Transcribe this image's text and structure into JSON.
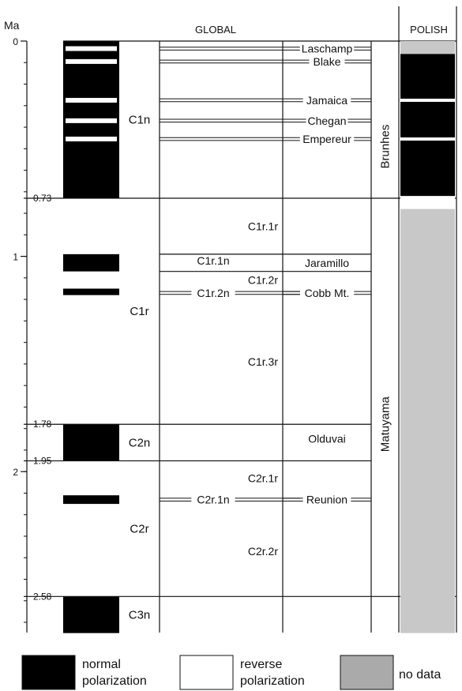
{
  "axis": {
    "unit": "Ma",
    "ticks": [
      {
        "label": "0",
        "value": 0
      },
      {
        "label": "0.73",
        "value": 0.73
      },
      {
        "label": "1",
        "value": 1
      },
      {
        "label": "1.78",
        "value": 1.78
      },
      {
        "label": "1.95",
        "value": 1.95
      },
      {
        "label": "2",
        "value": 2
      },
      {
        "label": "2.58",
        "value": 2.58
      }
    ]
  },
  "headers": {
    "global": "GLOBAL",
    "polish": "POLISH"
  },
  "chrons": [
    {
      "label": "C1n",
      "start": 0,
      "end": 0.73
    },
    {
      "label": "C1r",
      "start": 0.73,
      "end": 1.78
    },
    {
      "label": "C2n",
      "start": 1.78,
      "end": 1.95
    },
    {
      "label": "C2r",
      "start": 1.95,
      "end": 2.58
    },
    {
      "label": "C3n",
      "start": 2.58,
      "end": 2.75
    }
  ],
  "subchrons": [
    {
      "label": "C1r.1r",
      "age": 0.86
    },
    {
      "label": "C1r.1n",
      "age": 1.02
    },
    {
      "label": "C1r.2r",
      "age": 1.11
    },
    {
      "label": "C1r.2n",
      "age": 1.17
    },
    {
      "label": "C1r.3r",
      "age": 1.49
    },
    {
      "label": "C2r.1r",
      "age": 2.03
    },
    {
      "label": "C2r.1n",
      "age": 2.13
    },
    {
      "label": "C2r.2r",
      "age": 2.37
    }
  ],
  "excursions": [
    {
      "label": "Laschamp",
      "age": 0.035
    },
    {
      "label": "Blake",
      "age": 0.095
    },
    {
      "label": "Jamaica",
      "age": 0.275
    },
    {
      "label": "Chegan",
      "age": 0.37
    },
    {
      "label": "Empereur",
      "age": 0.455
    },
    {
      "label": "Cobb Mt.",
      "age": 1.17
    },
    {
      "label": "Reunion",
      "age": 2.13
    }
  ],
  "events": [
    {
      "label": "Jaramillo",
      "start": 0.99,
      "end": 1.07
    },
    {
      "label": "Olduvai",
      "start": 1.78,
      "end": 1.95
    }
  ],
  "chrons_named": [
    {
      "label": "Brunhes",
      "start": 0,
      "end": 0.73
    },
    {
      "label": "Matuyama",
      "start": 0.73,
      "end": 2.58
    }
  ],
  "global_normal_intervals": [
    [
      0,
      0.73
    ],
    [
      0.99,
      1.07
    ],
    [
      1.15,
      1.18
    ],
    [
      1.78,
      1.95
    ],
    [
      2.11,
      2.15
    ],
    [
      2.58,
      2.75
    ]
  ],
  "global_white_lines": [
    0.035,
    0.095,
    0.275,
    0.37,
    0.455
  ],
  "polish_column": [
    {
      "state": "no data",
      "start": 0,
      "end": 0.06
    },
    {
      "state": "normal",
      "start": 0.06,
      "end": 0.72
    },
    {
      "state": "reverse",
      "start": 0.72,
      "end": 0.78
    },
    {
      "state": "no data",
      "start": 0.78,
      "end": 2.75
    }
  ],
  "polish_white_lines": [
    0.275,
    0.455
  ],
  "legend": [
    {
      "label": "normal polarization",
      "line1": "normal",
      "line2": "polarization",
      "color": "#000000"
    },
    {
      "label": "reverse polarization",
      "line1": "reverse",
      "line2": "polarization",
      "color": "#ffffff"
    },
    {
      "label": "no data",
      "line1": "no data",
      "line2": "",
      "color": "#aaaaaa"
    }
  ],
  "colors": {
    "normal": "#000000",
    "reverse": "#ffffff",
    "no_data": "#c8c8c8",
    "legend_no_data": "#aaaaaa"
  }
}
